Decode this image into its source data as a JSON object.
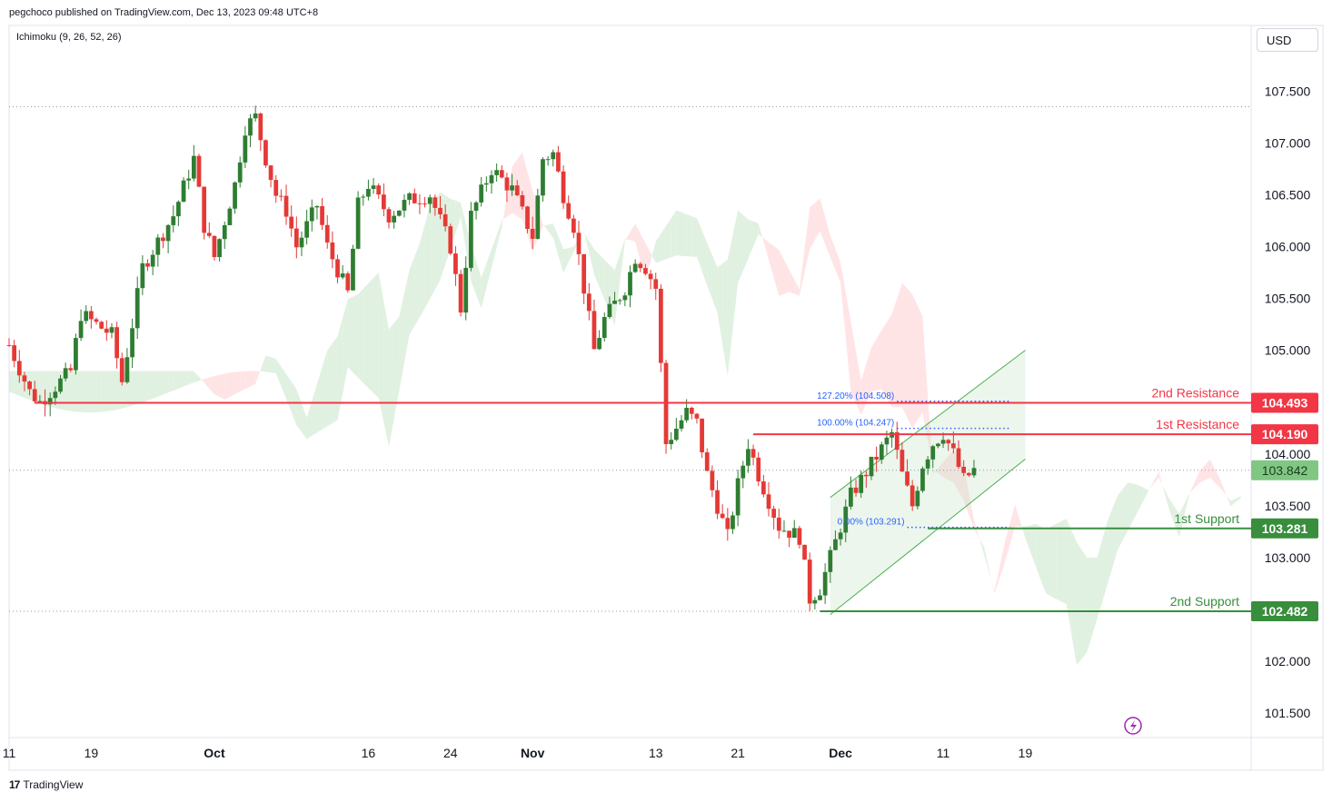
{
  "header": {
    "published": "pegchoco published on TradingView.com, Dec 13, 2023 09:48 UTC+8",
    "indicator": "Ichimoku (9, 26, 52, 26)",
    "currency": "USD"
  },
  "footer": {
    "brand": "TradingView",
    "logo_text": "17"
  },
  "colors": {
    "bull": "#26a69a",
    "bull_candle": "#2e7d32",
    "bear": "#e53935",
    "resistance": "#f23645",
    "support": "#388e3c",
    "fib": "#2962ff",
    "cloud_green": "#c8e6c9",
    "cloud_red": "#ffcdd2",
    "grid_dot": "#9598a1",
    "lightning": "#9c27b0"
  },
  "chart_data": {
    "type": "candlestick",
    "ylim": [
      101.1,
      107.9
    ],
    "yticks": [
      "107.500",
      "107.000",
      "106.500",
      "106.000",
      "105.500",
      "105.000",
      "104.000",
      "103.500",
      "103.000",
      "102.000",
      "101.500"
    ],
    "xticks": [
      {
        "label": "11",
        "day": 0,
        "bold": false
      },
      {
        "label": "19",
        "day": 8,
        "bold": false
      },
      {
        "label": "Oct",
        "day": 20,
        "bold": true
      },
      {
        "label": "16",
        "day": 35,
        "bold": false
      },
      {
        "label": "24",
        "day": 43,
        "bold": false
      },
      {
        "label": "Nov",
        "day": 51,
        "bold": true
      },
      {
        "label": "13",
        "day": 63,
        "bold": false
      },
      {
        "label": "21",
        "day": 71,
        "bold": false
      },
      {
        "label": "Dec",
        "day": 81,
        "bold": true
      },
      {
        "label": "11",
        "day": 91,
        "bold": false
      },
      {
        "label": "19",
        "day": 99,
        "bold": false
      }
    ],
    "price_path": [
      [
        0,
        105.05
      ],
      [
        2,
        104.6
      ],
      [
        3,
        104.5
      ],
      [
        6,
        104.8
      ],
      [
        7,
        105.35
      ],
      [
        10,
        105.15
      ],
      [
        11,
        104.7
      ],
      [
        13,
        105.8
      ],
      [
        16,
        106.3
      ],
      [
        18,
        106.85
      ],
      [
        19,
        106.2
      ],
      [
        20,
        105.9
      ],
      [
        22,
        106.6
      ],
      [
        23,
        107.15
      ],
      [
        24,
        107.25
      ],
      [
        25,
        106.85
      ],
      [
        26,
        106.5
      ],
      [
        27,
        106.35
      ],
      [
        28,
        106.0
      ],
      [
        30,
        106.4
      ],
      [
        31,
        106.0
      ],
      [
        33,
        105.55
      ],
      [
        34,
        106.4
      ],
      [
        35,
        106.6
      ],
      [
        37,
        106.3
      ],
      [
        39,
        106.45
      ],
      [
        41,
        106.5
      ],
      [
        43,
        106.0
      ],
      [
        44,
        105.4
      ],
      [
        45,
        106.3
      ],
      [
        47,
        106.75
      ],
      [
        49,
        106.55
      ],
      [
        51,
        106.1
      ],
      [
        52,
        106.85
      ],
      [
        53,
        106.9
      ],
      [
        54,
        106.5
      ],
      [
        55,
        106.2
      ],
      [
        57,
        105.0
      ],
      [
        58,
        105.3
      ],
      [
        60,
        105.6
      ],
      [
        61,
        105.9
      ],
      [
        62,
        105.8
      ],
      [
        63,
        105.6
      ],
      [
        64,
        104.1
      ],
      [
        66,
        104.4
      ],
      [
        67,
        104.3
      ],
      [
        68,
        103.8
      ],
      [
        70,
        103.2
      ],
      [
        71,
        103.7
      ],
      [
        72,
        104.1
      ],
      [
        73,
        103.8
      ],
      [
        75,
        103.3
      ],
      [
        77,
        103.2
      ],
      [
        78,
        102.6
      ],
      [
        79,
        102.7
      ],
      [
        80,
        103.0
      ],
      [
        81,
        103.3
      ],
      [
        82,
        103.6
      ],
      [
        84,
        103.9
      ],
      [
        85,
        104.05
      ],
      [
        86,
        104.2
      ],
      [
        87,
        103.8
      ],
      [
        88,
        103.5
      ],
      [
        89,
        103.9
      ],
      [
        90,
        104.1
      ],
      [
        91,
        104.2
      ],
      [
        92,
        104.0
      ],
      [
        93,
        103.75
      ],
      [
        94,
        103.842
      ]
    ],
    "levels": [
      {
        "label": "2nd Resistance",
        "value": 104.493,
        "tag": "104.493",
        "kind": "resistance"
      },
      {
        "label": "1st Resistance",
        "value": 104.19,
        "tag": "104.190",
        "kind": "resistance"
      },
      {
        "label": "1st Support",
        "value": 103.281,
        "tag": "103.281",
        "kind": "support"
      },
      {
        "label": "2nd Support",
        "value": 102.482,
        "tag": "102.482",
        "kind": "support"
      }
    ],
    "current_price": {
      "value": 103.842,
      "tag": "103.842"
    },
    "fib_levels": [
      {
        "label": "127.20% (104.508)",
        "value": 104.508
      },
      {
        "label": "100.00% (104.247)",
        "value": 104.247
      },
      {
        "label": "0.00% (103.291)",
        "value": 103.291
      }
    ],
    "channel": {
      "lower": [
        [
          80,
          102.45
        ],
        [
          99,
          103.95
        ]
      ],
      "upper": [
        [
          80,
          103.58
        ],
        [
          99,
          105.0
        ]
      ]
    },
    "dotted_levels": [
      107.35,
      102.482,
      103.842
    ],
    "grid": false,
    "legend": "none"
  }
}
